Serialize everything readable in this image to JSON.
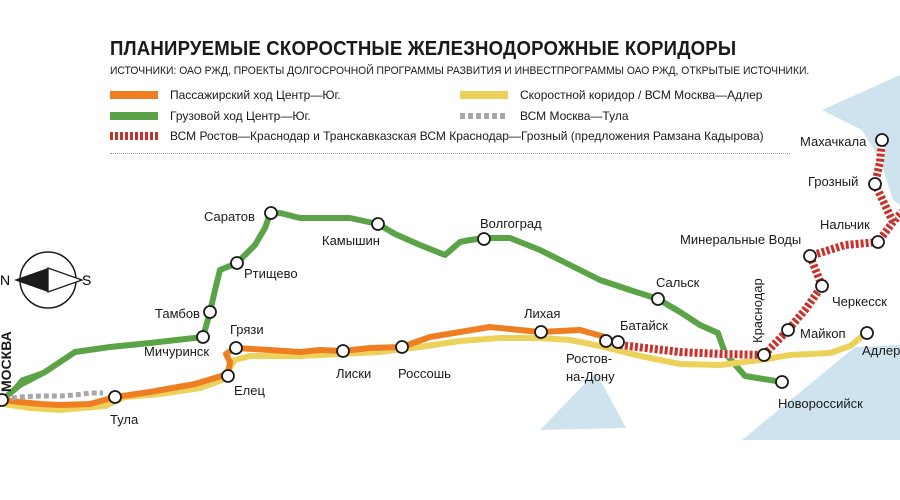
{
  "title": "ПЛАНИРУЕМЫЕ СКОРОСТНЫЕ ЖЕЛЕЗНОДОРОЖНЫЕ КОРИДОРЫ",
  "subtitle": "ИСТОЧНИКИ: ОАО РЖД, ПРОЕКТЫ ДОЛГОСРОЧНОЙ ПРОГРАММЫ РАЗВИТИЯ И ИНВЕСТПРОГРАММЫ ОАО РЖД, ОТКРЫТЫЕ ИСТОЧНИКИ.",
  "legend": {
    "passenger": "Пассажирский ход Центр—Юг.",
    "cargo": "Грузовой ход Центр—Юг.",
    "hsr_corridor": "Скоростной коридор / ВСМ Москва—Адлер",
    "hsr_tula": "ВСМ Москва—Тула",
    "hsr_kadyrov": "ВСМ Ростов—Краснодар и Транскавказская ВСМ Краснодар—Грозный (предложения Рамзана Кадырова)"
  },
  "compass": {
    "n": "N",
    "s": "S"
  },
  "cities": {
    "moskva": "МОСКВА",
    "tula": "Тула",
    "elets": "Елец",
    "gryazi": "Грязи",
    "michurinsk": "Мичуринск",
    "tambov": "Тамбов",
    "rtishchevo": "Ртищево",
    "saratov": "Саратов",
    "kamyshin": "Камышин",
    "volgograd": "Волгоград",
    "liski": "Лиски",
    "rossosh": "Россошь",
    "likhaya": "Лихая",
    "rostov": [
      "Ростов-",
      "на-Дону"
    ],
    "bataysk": "Батайск",
    "salsk": "Сальск",
    "krasnodar": "Краснодар",
    "novorossiysk": "Новороссийск",
    "maykop": "Майкоп",
    "adler": "Адлер",
    "cherkessk": "Черкесск",
    "min_vody": "Минеральные Воды",
    "nalchik": "Нальчик",
    "grozny": "Грозный",
    "makhachkala": "Махачкала"
  },
  "colors": {
    "passenger": "#ef7d22",
    "cargo": "#5aa447",
    "hsr_corridor": "#ecd25a",
    "hsr_tula": "#a8a8a8",
    "hsr_kadyrov": "#c8322c",
    "water": "#cfe3ee"
  }
}
